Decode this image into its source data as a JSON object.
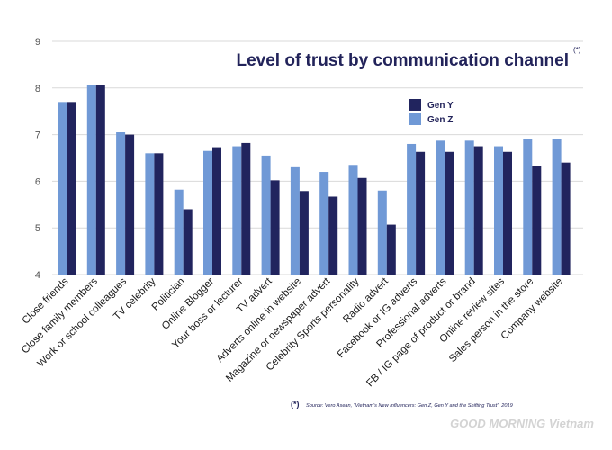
{
  "chart_data": {
    "type": "bar",
    "title": "Level of trust by communication channel",
    "title_marker": "(*)",
    "categories": [
      "Close friends",
      "Close family members",
      "Work or school colleagues",
      "TV celebrity",
      "Politician",
      "Online Blogger",
      "Your boss or lecturer",
      "TV advert",
      "Adverts online in website",
      "Magazine or newspaper advert",
      "Celebrity Sports personality",
      "Radio advert",
      "Facebook or IG adverts",
      "Professional adverts",
      "FB / IG page of product or brand",
      "Online review sites",
      "Sales person in the store",
      "Company website"
    ],
    "series": [
      {
        "name": "Gen Z",
        "color": "#7099D6",
        "values": [
          7.7,
          8.07,
          7.05,
          6.6,
          5.82,
          6.65,
          6.75,
          6.55,
          6.3,
          6.2,
          6.35,
          5.8,
          6.8,
          6.87,
          6.87,
          6.75,
          6.9,
          6.9
        ]
      },
      {
        "name": "Gen Y",
        "color": "#21245E",
        "values": [
          7.7,
          8.07,
          7.0,
          6.6,
          5.4,
          6.73,
          6.82,
          6.02,
          5.79,
          5.67,
          6.07,
          5.07,
          6.63,
          6.63,
          6.75,
          6.63,
          6.32,
          6.4
        ]
      }
    ],
    "legend_order": [
      "Gen Y",
      "Gen Z"
    ],
    "legend_position": "top-right",
    "ylim": [
      4,
      9
    ],
    "yticks": [
      4,
      5,
      6,
      7,
      8,
      9
    ],
    "grid": true,
    "xlabel": "",
    "ylabel": ""
  },
  "footer": {
    "source_marker": "(*)",
    "source_text": "Source: Vero Asean, “Vietnam's New Influencers: Gen Z, Gen Y and the Shifting Trust”, 2019",
    "watermark_text": "GOOD MORNING Vietnam"
  },
  "colors": {
    "title": "#22235A",
    "grid": "#d9d9d9",
    "axis_text": "#555555"
  }
}
